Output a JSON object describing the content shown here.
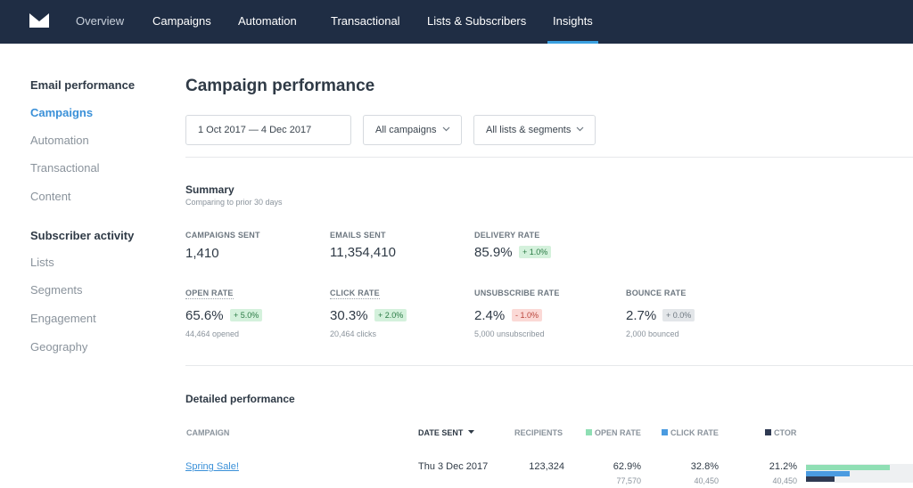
{
  "nav": {
    "items": [
      {
        "label": "Overview"
      },
      {
        "label": "Campaigns"
      },
      {
        "label": "Automation"
      },
      {
        "label": "Transactional"
      },
      {
        "label": "Lists & Subscribers"
      },
      {
        "label": "Insights",
        "active": true
      }
    ]
  },
  "sidebar": {
    "email_heading": "Email performance",
    "email_items": [
      "Campaigns",
      "Automation",
      "Transactional",
      "Content"
    ],
    "active_item": "Campaigns",
    "subscriber_heading": "Subscriber activity",
    "subscriber_items": [
      "Lists",
      "Segments",
      "Engagement",
      "Geography"
    ]
  },
  "page": {
    "title": "Campaign performance",
    "filters": {
      "date_range": "1 Oct 2017 — 4 Dec 2017",
      "campaigns": "All campaigns",
      "lists": "All lists & segments"
    }
  },
  "summary": {
    "title": "Summary",
    "subtitle": "Comparing to prior 30 days",
    "stats": [
      {
        "label": "CAMPAIGNS SENT",
        "value": "1,410"
      },
      {
        "label": "EMAILS SENT",
        "value": "11,354,410"
      },
      {
        "label": "DELIVERY RATE",
        "value": "85.9%",
        "change": "+ 1.0%",
        "trend": "up"
      },
      {
        "label": "OPEN RATE",
        "value": "65.6%",
        "change": "+ 5.0%",
        "trend": "up",
        "detail": "44,464 opened"
      },
      {
        "label": "CLICK RATE",
        "value": "30.3%",
        "change": "+ 2.0%",
        "trend": "up",
        "detail": "20,464 clicks"
      },
      {
        "label": "UNSUBSCRIBE RATE",
        "value": "2.4%",
        "change": "- 1.0%",
        "trend": "down",
        "detail": "5,000 unsubscribed"
      },
      {
        "label": "BOUNCE RATE",
        "value": "2.7%",
        "change": "+ 0.0%",
        "trend": "flat",
        "detail": "2,000 bounced"
      }
    ]
  },
  "detailed": {
    "title": "Detailed performance",
    "columns": {
      "campaign": "CAMPAIGN",
      "date_sent": "DATE SENT",
      "recipients": "RECIPIENTS",
      "open_rate": "OPEN RATE",
      "click_rate": "CLICK RATE",
      "ctor": "CTOR"
    },
    "legend_colors": {
      "open_rate": "#8fdfb4",
      "click_rate": "#4a9be0",
      "ctor": "#2f3a52"
    },
    "rows": [
      {
        "campaign": "Spring Sale!",
        "date_sent": "Thu 3 Dec 2017",
        "recipients": "123,324",
        "open_rate": "62.9%",
        "opens": "77,570",
        "click_rate": "32.8%",
        "clicks": "40,450",
        "ctor": "21.2%",
        "ctor_count": "40,450",
        "bars": {
          "open_rate": 0.629,
          "click_rate": 0.328,
          "ctor": 0.212
        }
      }
    ]
  },
  "colors": {
    "nav_bg": "#1f2d44",
    "accent": "#3aa0e0",
    "link": "#3a90d8"
  }
}
